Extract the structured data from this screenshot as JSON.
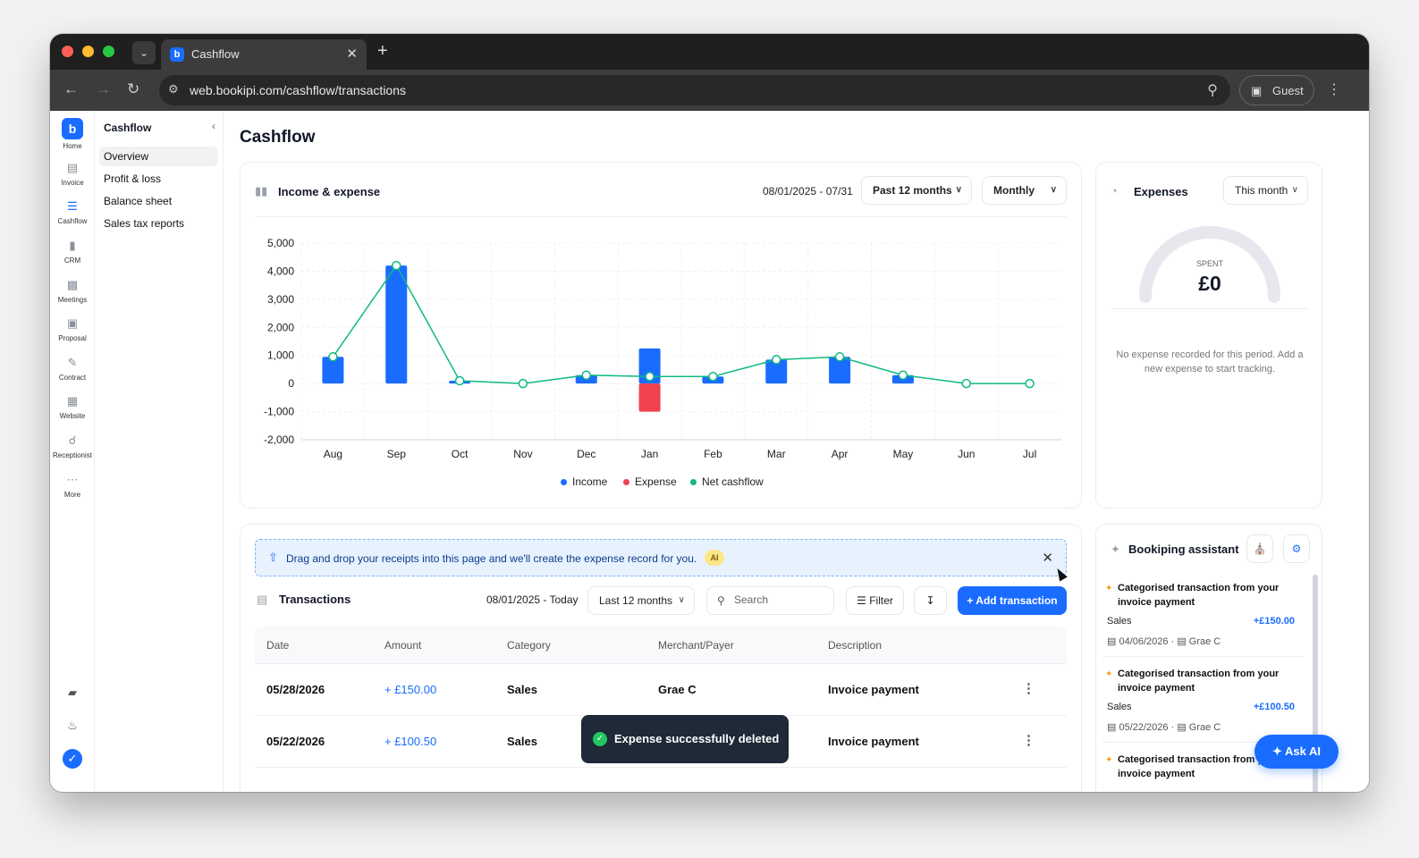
{
  "browser": {
    "tab_title": "Cashflow",
    "url": "web.bookipi.com/cashflow/transactions",
    "profile_label": "Guest",
    "new_tab": "+"
  },
  "rail": {
    "items": [
      {
        "label": "Home",
        "icon": "logo-icon"
      },
      {
        "label": "Invoice",
        "icon": "invoice-icon"
      },
      {
        "label": "Cashflow",
        "icon": "cashflow-icon"
      },
      {
        "label": "CRM",
        "icon": "crm-icon"
      },
      {
        "label": "Meetings",
        "icon": "meetings-icon"
      },
      {
        "label": "Proposal",
        "icon": "proposal-icon"
      },
      {
        "label": "Contract",
        "icon": "contract-icon"
      },
      {
        "label": "Website",
        "icon": "website-icon"
      },
      {
        "label": "Receptionist",
        "icon": "headset-icon"
      },
      {
        "label": "More",
        "icon": "more-icon"
      }
    ]
  },
  "subnav": {
    "title": "Cashflow",
    "items": [
      "Overview",
      "Profit & loss",
      "Balance sheet",
      "Sales tax reports"
    ]
  },
  "page": {
    "title": "Cashflow"
  },
  "income_expense": {
    "title": "Income & expense",
    "date_range": "08/01/2025 - 07/31",
    "period": "Past 12 months",
    "interval": "Monthly"
  },
  "chart_data": {
    "type": "bar",
    "categories": [
      "Aug",
      "Sep",
      "Oct",
      "Nov",
      "Dec",
      "Jan",
      "Feb",
      "Mar",
      "Apr",
      "May",
      "Jun",
      "Jul"
    ],
    "yticks": [
      "5,000",
      "4,000",
      "3,000",
      "2,000",
      "1,000",
      "0",
      "-1,000",
      "-2,000"
    ],
    "ylim": [
      -2000,
      5000
    ],
    "series": [
      {
        "name": "Income",
        "type": "bar",
        "color": "#1a6cff",
        "values": [
          950,
          4200,
          100,
          0,
          300,
          1250,
          250,
          850,
          950,
          300,
          0,
          0
        ]
      },
      {
        "name": "Expense",
        "type": "bar",
        "color": "#f0424f",
        "values": [
          0,
          0,
          0,
          0,
          0,
          -1000,
          0,
          0,
          0,
          0,
          0,
          0
        ]
      },
      {
        "name": "Net cashflow",
        "type": "line",
        "color": "#10b981",
        "values": [
          950,
          4200,
          100,
          0,
          300,
          250,
          250,
          850,
          950,
          300,
          0,
          0
        ]
      }
    ],
    "grid": true,
    "legend_position": "bottom"
  },
  "expenses": {
    "title": "Expenses",
    "period": "This month",
    "spent_label": "SPENT",
    "spent_value": "£0",
    "empty_text": "No expense recorded for this period. Add a new expense to start tracking."
  },
  "banner": {
    "text": "Drag and drop your receipts into this page and we'll create the expense record for you.",
    "badge": "AI"
  },
  "transactions": {
    "title": "Transactions",
    "date_range": "08/01/2025 - Today",
    "period": "Last 12 months",
    "search_placeholder": "Search",
    "filter_label": "Filter",
    "add_label": "Add transaction",
    "columns": [
      "Date",
      "Amount",
      "Category",
      "Merchant/Payer",
      "Description"
    ],
    "rows": [
      {
        "date": "05/28/2026",
        "amount": "+ £150.00",
        "category": "Sales",
        "merchant": "Grae C",
        "description": "Invoice payment"
      },
      {
        "date": "05/22/2026",
        "amount": "+ £100.50",
        "category": "Sales",
        "merchant": "",
        "description": "Invoice payment"
      }
    ]
  },
  "toast": {
    "text": "Expense successfully deleted"
  },
  "assistant": {
    "title": "Bookiping assistant",
    "items": [
      {
        "title": "Categorised transaction from your invoice payment",
        "category": "Sales",
        "amount": "+£150.00",
        "date": "04/06/2026",
        "payer": "Grae C"
      },
      {
        "title": "Categorised transaction from your invoice payment",
        "category": "Sales",
        "amount": "+£100.50",
        "date": "05/22/2026",
        "payer": "Grae C"
      },
      {
        "title": "Categorised transaction from your invoice payment",
        "category": "",
        "amount": "",
        "date": "",
        "payer": ""
      }
    ],
    "ask_ai": "Ask AI"
  },
  "colors": {
    "brand": "#1a6cff",
    "income": "#1a6cff",
    "expense": "#f0424f",
    "net": "#10b981"
  }
}
